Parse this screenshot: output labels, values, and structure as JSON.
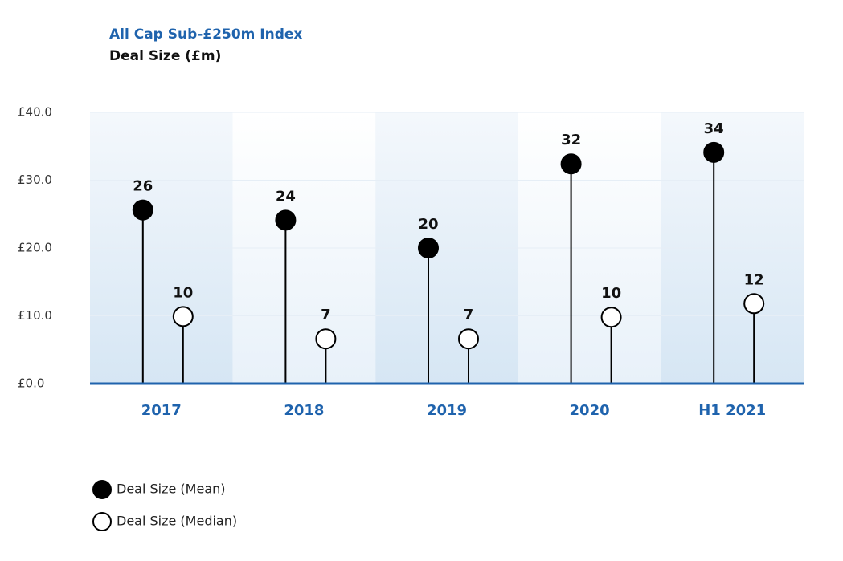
{
  "chart_data": {
    "type": "lollipop",
    "title": "All Cap Sub-£250m Index",
    "subtitle": "Deal Size (£m)",
    "categories": [
      "2017",
      "2018",
      "2019",
      "2020",
      "H1 2021"
    ],
    "series": [
      {
        "name": "Deal Size (Mean)",
        "color": "#000000",
        "filled": true,
        "values": [
          25.6,
          24.1,
          20.0,
          32.4,
          34.1
        ],
        "value_labels": [
          "26",
          "24",
          "20",
          "32",
          "34"
        ]
      },
      {
        "name": "Deal Size (Median)",
        "color": "#000000",
        "filled": false,
        "values": [
          9.9,
          6.6,
          6.6,
          9.8,
          11.8
        ],
        "value_labels": [
          "10",
          "7",
          "7",
          "10",
          "12"
        ]
      }
    ],
    "ylim": [
      0,
      40
    ],
    "yticks": [
      {
        "value": 0,
        "label": "£0.0"
      },
      {
        "value": 10,
        "label": "£10.0"
      },
      {
        "value": 20,
        "label": "£20.0"
      },
      {
        "value": 30,
        "label": "£30.0"
      },
      {
        "value": 40,
        "label": "£40.0"
      }
    ],
    "grid": true
  }
}
